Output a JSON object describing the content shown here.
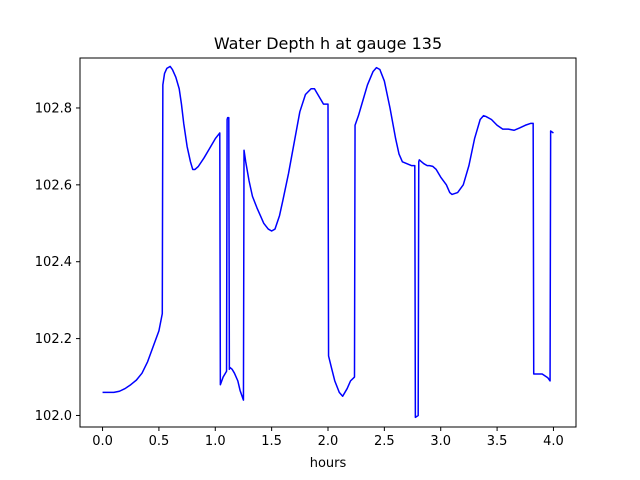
{
  "chart_data": {
    "type": "line",
    "title": "Water Depth h at gauge 135",
    "xlabel": "hours",
    "ylabel": "",
    "xlim": [
      -0.2,
      4.2
    ],
    "ylim": [
      101.97,
      102.93
    ],
    "xticks": [
      0.0,
      0.5,
      1.0,
      1.5,
      2.0,
      2.5,
      3.0,
      3.5,
      4.0
    ],
    "xtick_labels": [
      "0.0",
      "0.5",
      "1.0",
      "1.5",
      "2.0",
      "2.5",
      "3.0",
      "3.5",
      "4.0"
    ],
    "yticks": [
      102.0,
      102.2,
      102.4,
      102.6,
      102.8
    ],
    "ytick_labels": [
      "102.0",
      "102.2",
      "102.4",
      "102.6",
      "102.8"
    ],
    "grid": false,
    "series": [
      {
        "color": "#0000ff",
        "x": [
          0.0,
          0.1,
          0.15,
          0.2,
          0.25,
          0.3,
          0.35,
          0.4,
          0.45,
          0.5,
          0.53,
          0.535,
          0.55,
          0.57,
          0.6,
          0.62,
          0.65,
          0.68,
          0.7,
          0.72,
          0.75,
          0.78,
          0.8,
          0.82,
          0.85,
          0.9,
          0.95,
          1.0,
          1.04,
          1.045,
          1.07,
          1.1,
          1.105,
          1.11,
          1.12,
          1.125,
          1.13,
          1.15,
          1.17,
          1.2,
          1.22,
          1.25,
          1.255,
          1.27,
          1.3,
          1.33,
          1.37,
          1.4,
          1.43,
          1.47,
          1.5,
          1.53,
          1.57,
          1.6,
          1.65,
          1.7,
          1.75,
          1.8,
          1.85,
          1.88,
          1.9,
          1.93,
          1.96,
          2.0,
          2.005,
          2.03,
          2.06,
          2.1,
          2.13,
          2.17,
          2.2,
          2.235,
          2.24,
          2.27,
          2.3,
          2.35,
          2.4,
          2.43,
          2.46,
          2.5,
          2.55,
          2.6,
          2.63,
          2.66,
          2.7,
          2.74,
          2.77,
          2.775,
          2.8,
          2.805,
          2.81,
          2.83,
          2.85,
          2.88,
          2.9,
          2.93,
          2.96,
          3.0,
          3.05,
          3.08,
          3.1,
          3.15,
          3.2,
          3.25,
          3.3,
          3.35,
          3.38,
          3.4,
          3.45,
          3.5,
          3.55,
          3.6,
          3.65,
          3.7,
          3.75,
          3.8,
          3.82,
          3.825,
          3.85,
          3.9,
          3.95,
          3.97,
          3.975,
          4.0
        ],
        "y": [
          102.06,
          102.06,
          102.063,
          102.07,
          102.08,
          102.092,
          102.11,
          102.14,
          102.18,
          102.22,
          102.265,
          102.86,
          102.89,
          102.903,
          102.908,
          102.9,
          102.88,
          102.85,
          102.81,
          102.76,
          102.7,
          102.66,
          102.64,
          102.64,
          102.648,
          102.67,
          102.695,
          102.72,
          102.735,
          102.08,
          102.1,
          102.115,
          102.77,
          102.775,
          102.775,
          102.12,
          102.125,
          102.12,
          102.11,
          102.09,
          102.065,
          102.04,
          102.69,
          102.66,
          102.61,
          102.57,
          102.54,
          102.52,
          102.5,
          102.485,
          102.48,
          102.485,
          102.52,
          102.56,
          102.63,
          102.71,
          102.79,
          102.835,
          102.85,
          102.85,
          102.84,
          102.825,
          102.81,
          102.81,
          102.155,
          102.125,
          102.09,
          102.06,
          102.05,
          102.07,
          102.09,
          102.1,
          102.755,
          102.78,
          102.81,
          102.86,
          102.895,
          102.905,
          102.9,
          102.87,
          102.8,
          102.72,
          102.68,
          102.66,
          102.655,
          102.65,
          102.65,
          101.995,
          102.0,
          102.66,
          102.665,
          102.66,
          102.655,
          102.65,
          102.65,
          102.648,
          102.64,
          102.62,
          102.6,
          102.58,
          102.575,
          102.58,
          102.6,
          102.65,
          102.72,
          102.77,
          102.78,
          102.778,
          102.77,
          102.755,
          102.745,
          102.745,
          102.742,
          102.748,
          102.755,
          102.76,
          102.76,
          102.108,
          102.108,
          102.108,
          102.098,
          102.09,
          102.74,
          102.735
        ]
      }
    ]
  }
}
